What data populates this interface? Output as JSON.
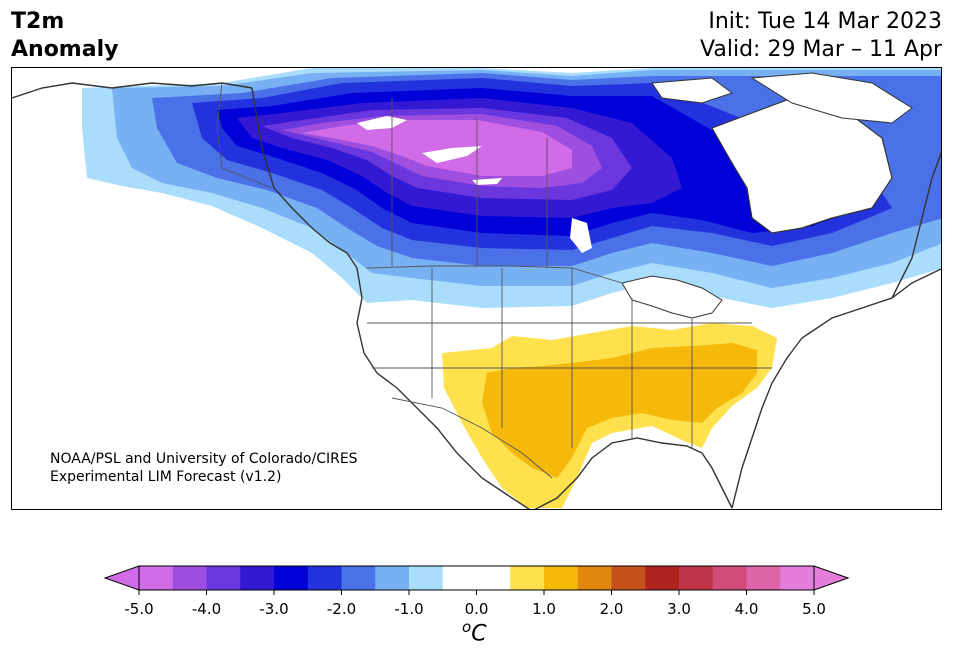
{
  "title": {
    "line1": "T2m",
    "line2": "Anomaly"
  },
  "dates": {
    "init": "Init: Tue 14 Mar 2023",
    "valid": "Valid: 29 Mar – 11 Apr"
  },
  "credit": {
    "line1": "NOAA/PSL and University of Colorado/CIRES",
    "line2": "Experimental LIM Forecast (v1.2)"
  },
  "colorbar": {
    "unit_base": "C",
    "unit_super": "o",
    "range": [
      -5.0,
      5.0
    ],
    "step": 0.5,
    "tick_labels": [
      "-5.0",
      "-4.0",
      "-3.0",
      "-2.0",
      "-1.0",
      "0.0",
      "1.0",
      "2.0",
      "3.0",
      "4.0",
      "5.0"
    ],
    "colors": [
      "#d16be8",
      "#9e4fe0",
      "#6a37de",
      "#3319d2",
      "#0000d8",
      "#2233de",
      "#4a71e8",
      "#77b1f4",
      "#aadcfc",
      "#ffffff",
      "#ffffff",
      "#ffe14e",
      "#f4b90b",
      "#e0870d",
      "#c5521a",
      "#b0241f",
      "#c0344a",
      "#d04c7a",
      "#dd65a8",
      "#e57ddb"
    ],
    "low_extend": "#d16be8",
    "high_extend": "#e57ddb"
  },
  "map": {
    "region": "North America",
    "colors": {
      "land_outline": "#333333",
      "water": "#ffffff"
    }
  }
}
